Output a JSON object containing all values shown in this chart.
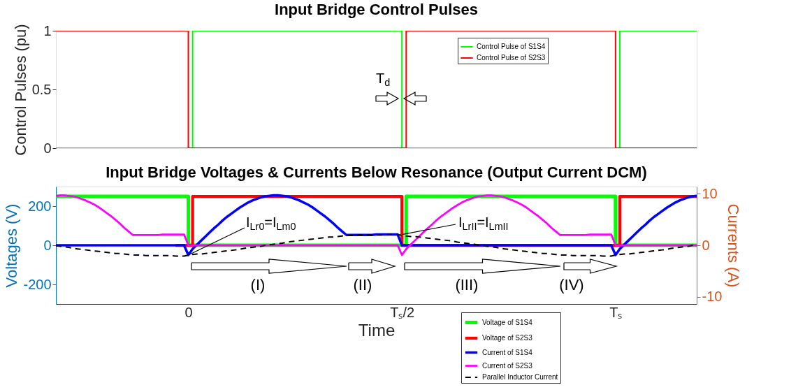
{
  "chart_data": [
    {
      "type": "step",
      "title": "Input Bridge Control Pulses",
      "ylabel": "Control Pulses (pu)",
      "categories": [
        null,
        null,
        null,
        null,
        null,
        null,
        null,
        null,
        null,
        null,
        null,
        null,
        null,
        null,
        null,
        null,
        null,
        null,
        null,
        null,
        null,
        null,
        null,
        null,
        null,
        null,
        null,
        null,
        null,
        null,
        null,
        null,
        null,
        null,
        null,
        null,
        null,
        null,
        null,
        null,
        null,
        null,
        null,
        null,
        null,
        null,
        null,
        null,
        null,
        null,
        null,
        null,
        null,
        null,
        null,
        null,
        null,
        null,
        null,
        null,
        null,
        null,
        null,
        null,
        null,
        null,
        null,
        null,
        null,
        null,
        null,
        null,
        null,
        null,
        null,
        null,
        null,
        null,
        null,
        null,
        null,
        null,
        null,
        null,
        null,
        null,
        null,
        null,
        null,
        null,
        null,
        null,
        null,
        null,
        null,
        null,
        null,
        null,
        null,
        null,
        null,
        null,
        null,
        null,
        null,
        null,
        null,
        null,
        null,
        null,
        null,
        null,
        null,
        null,
        null,
        null,
        null,
        null,
        null,
        null,
        null,
        null,
        null,
        null,
        null,
        null,
        null,
        null,
        null,
        null,
        null,
        null,
        null,
        null,
        null,
        null,
        null,
        null,
        null,
        null,
        null,
        null,
        null,
        null,
        null,
        null,
        null,
        null,
        null,
        null,
        null
      ],
      "ylim": [
        0,
        1
      ],
      "yticks": [
        0,
        0.5,
        1
      ],
      "tick_labels": "y",
      "grid": false,
      "legend": "top right",
      "annotations": [
        "T$_{d}$"
      ],
      "series": [
        {
          "name": "Control Pulse of S1S4",
          "color": "#00ff00",
          "values": [
            0,
            0,
            0,
            0,
            0,
            0,
            0,
            0,
            0,
            0,
            0,
            0,
            0,
            0,
            0,
            0,
            0,
            0,
            0,
            0,
            0,
            0,
            0,
            0,
            0,
            0,
            0,
            0,
            0,
            0,
            0,
            0,
            1,
            1,
            1,
            1,
            1,
            1,
            1,
            1,
            1,
            1,
            1,
            1,
            1,
            1,
            1,
            1,
            1,
            1,
            1,
            1,
            1,
            1,
            1,
            1,
            1,
            1,
            1,
            1,
            1,
            1,
            1,
            1,
            1,
            1,
            1,
            1,
            1,
            1,
            1,
            1,
            1,
            1,
            1,
            1,
            1,
            1,
            1,
            1,
            1,
            0,
            0,
            0,
            0,
            0,
            0,
            0,
            0,
            0,
            0,
            0,
            0,
            0,
            0,
            0,
            0,
            0,
            0,
            0,
            0,
            0,
            0,
            0,
            0,
            0,
            0,
            0,
            0,
            0,
            0,
            0,
            0,
            0,
            0,
            0,
            0,
            0,
            0,
            0,
            0,
            0,
            0,
            0,
            0,
            0,
            0,
            0,
            0,
            0,
            0,
            0,
            1,
            1,
            1,
            1,
            1,
            1,
            1,
            1,
            1,
            1,
            1,
            1,
            1,
            1,
            1,
            1,
            1,
            1,
            1
          ]
        },
        {
          "name": "Control Pulse of S2S3",
          "color": "#ff0000",
          "values": [
            1,
            1,
            1,
            1,
            1,
            1,
            1,
            1,
            1,
            1,
            1,
            1,
            1,
            1,
            1,
            1,
            1,
            1,
            1,
            1,
            1,
            1,
            1,
            1,
            1,
            1,
            1,
            1,
            1,
            1,
            1,
            0,
            0,
            0,
            0,
            0,
            0,
            0,
            0,
            0,
            0,
            0,
            0,
            0,
            0,
            0,
            0,
            0,
            0,
            0,
            0,
            0,
            0,
            0,
            0,
            0,
            0,
            0,
            0,
            0,
            0,
            0,
            0,
            0,
            0,
            0,
            0,
            0,
            0,
            0,
            0,
            0,
            0,
            0,
            0,
            0,
            0,
            0,
            0,
            0,
            0,
            0,
            1,
            1,
            1,
            1,
            1,
            1,
            1,
            1,
            1,
            1,
            1,
            1,
            1,
            1,
            1,
            1,
            1,
            1,
            1,
            1,
            1,
            1,
            1,
            1,
            1,
            1,
            1,
            1,
            1,
            1,
            1,
            1,
            1,
            1,
            1,
            1,
            1,
            1,
            1,
            1,
            1,
            1,
            1,
            1,
            1,
            1,
            1,
            1,
            1,
            0,
            0,
            0,
            0,
            0,
            0,
            0,
            0,
            0,
            0,
            0,
            0,
            0,
            0,
            0,
            0,
            0,
            0,
            0,
            0
          ]
        }
      ]
    },
    {
      "type": "line",
      "title": "Input Bridge Voltages & Currents Below Resonance (Output Current DCM)",
      "xlabel": "Time",
      "ylabel": "Voltages (V)",
      "y2label": "Currents (A)",
      "categories": [
        null,
        null,
        null,
        null,
        null,
        null,
        null,
        null,
        null,
        null,
        null,
        null,
        null,
        null,
        null,
        null,
        null,
        null,
        null,
        null,
        null,
        null,
        null,
        null,
        null,
        null,
        null,
        null,
        null,
        null,
        null,
        "0",
        null,
        null,
        null,
        null,
        null,
        null,
        null,
        null,
        null,
        null,
        null,
        null,
        null,
        null,
        null,
        null,
        null,
        null,
        null,
        null,
        null,
        null,
        null,
        null,
        null,
        null,
        null,
        null,
        null,
        null,
        null,
        null,
        null,
        null,
        null,
        null,
        null,
        null,
        null,
        null,
        null,
        null,
        null,
        null,
        null,
        null,
        null,
        null,
        null,
        "Tₛ/2",
        null,
        null,
        null,
        null,
        null,
        null,
        null,
        null,
        null,
        null,
        null,
        null,
        null,
        null,
        null,
        null,
        null,
        null,
        null,
        null,
        null,
        null,
        null,
        null,
        null,
        null,
        null,
        null,
        null,
        null,
        null,
        null,
        null,
        null,
        null,
        null,
        null,
        null,
        null,
        null,
        null,
        null,
        null,
        null,
        null,
        null,
        null,
        null,
        null,
        "Tₛ",
        null,
        null,
        null,
        null,
        null,
        null,
        null,
        null,
        null,
        null,
        null,
        null,
        null,
        null,
        null,
        null,
        null,
        null,
        null
      ],
      "ylim": [
        -300,
        300
      ],
      "yticks": [
        -200,
        0,
        200
      ],
      "y2lim": [
        -11.4,
        11.4
      ],
      "y2ticks": [
        -10,
        0,
        10
      ],
      "grid": false,
      "legend": "bottom",
      "annotations": [
        {
          "text": "I$_{Lr0}$=I$_{Lm0}$",
          "x": "0",
          "y": -50
        },
        {
          "text": "I$_{LrII}$=I$_{LmII}$",
          "x": "Tₛ/2",
          "y": 55
        },
        "(I)",
        "(II)",
        "(III)",
        "(IV)"
      ],
      "series": [
        {
          "name": "Voltage of S1S4",
          "color": "#00ff00",
          "type": "step",
          "values": [
            250,
            250,
            250,
            250,
            250,
            250,
            250,
            250,
            250,
            250,
            250,
            250,
            250,
            250,
            250,
            250,
            250,
            250,
            250,
            250,
            250,
            250,
            250,
            250,
            250,
            250,
            250,
            250,
            250,
            250,
            250,
            0,
            0,
            0,
            0,
            0,
            0,
            0,
            0,
            0,
            0,
            0,
            0,
            0,
            0,
            0,
            0,
            0,
            0,
            0,
            0,
            0,
            0,
            0,
            0,
            0,
            0,
            0,
            0,
            0,
            0,
            0,
            0,
            0,
            0,
            0,
            0,
            0,
            0,
            0,
            0,
            0,
            0,
            0,
            0,
            0,
            0,
            0,
            0,
            0,
            0,
            0,
            250,
            250,
            250,
            250,
            250,
            250,
            250,
            250,
            250,
            250,
            250,
            250,
            250,
            250,
            250,
            250,
            250,
            250,
            250,
            250,
            250,
            250,
            250,
            250,
            250,
            250,
            250,
            250,
            250,
            250,
            250,
            250,
            250,
            250,
            250,
            250,
            250,
            250,
            250,
            250,
            250,
            250,
            250,
            250,
            250,
            250,
            250,
            250,
            250,
            0,
            0,
            0,
            0,
            0,
            0,
            0,
            0,
            0,
            0,
            0,
            0,
            0,
            0,
            0,
            0,
            0,
            0,
            0,
            0
          ]
        },
        {
          "name": "Voltage of S2S3",
          "color": "#ff0000",
          "type": "step",
          "values": [
            null,
            null,
            null,
            null,
            null,
            null,
            null,
            null,
            null,
            null,
            null,
            null,
            null,
            null,
            null,
            null,
            null,
            null,
            null,
            null,
            null,
            null,
            null,
            null,
            null,
            null,
            null,
            null,
            0,
            0,
            0,
            0,
            250,
            250,
            250,
            250,
            250,
            250,
            250,
            250,
            250,
            250,
            250,
            250,
            250,
            250,
            250,
            250,
            250,
            250,
            250,
            250,
            250,
            250,
            250,
            250,
            250,
            250,
            250,
            250,
            250,
            250,
            250,
            250,
            250,
            250,
            250,
            250,
            250,
            250,
            250,
            250,
            250,
            250,
            250,
            250,
            250,
            250,
            250,
            250,
            250,
            0,
            0,
            0,
            0,
            0,
            0,
            0,
            0,
            0,
            0,
            0,
            0,
            0,
            0,
            0,
            0,
            0,
            0,
            0,
            0,
            0,
            0,
            0,
            0,
            0,
            0,
            0,
            0,
            0,
            0,
            0,
            0,
            0,
            0,
            0,
            0,
            0,
            0,
            0,
            0,
            0,
            0,
            0,
            0,
            0,
            0,
            0,
            0,
            0,
            0,
            0,
            250,
            250,
            250,
            250,
            250,
            250,
            250,
            250,
            250,
            250,
            250,
            250,
            250,
            250,
            250,
            250,
            250,
            250,
            250
          ]
        },
        {
          "name": "Current of S1S4",
          "color": "#0000ff",
          "axis": "y2",
          "values": [
            0,
            0,
            0,
            0,
            0,
            0,
            0,
            0,
            0,
            0,
            0,
            0,
            0,
            0,
            0,
            0,
            0,
            0,
            0,
            0,
            0,
            0,
            0,
            0,
            0,
            0,
            0,
            0,
            0,
            0,
            0,
            -1.9,
            -0.7,
            0.1,
            0.9,
            1.7,
            2.5,
            3.3,
            4.0,
            4.8,
            5.5,
            6.1,
            6.7,
            7.3,
            7.8,
            8.3,
            8.7,
            9.0,
            9.3,
            9.5,
            9.6,
            9.7,
            9.7,
            9.6,
            9.5,
            9.3,
            9.0,
            8.7,
            8.3,
            7.9,
            7.4,
            6.8,
            6.2,
            5.6,
            4.9,
            4.2,
            3.4,
            2.7,
            2.0,
            2.0,
            2.0,
            2.0,
            2.0,
            2.0,
            2.0,
            2.1,
            2.1,
            2.1,
            2.1,
            2.1,
            2.1,
            0,
            0,
            0,
            0,
            0,
            0,
            0,
            0,
            0,
            0,
            0,
            0,
            0,
            0,
            0,
            0,
            0,
            0,
            0,
            0,
            0,
            0,
            0,
            0,
            0,
            0,
            0,
            0,
            0,
            0,
            0,
            0,
            0,
            0,
            0,
            0,
            0,
            0,
            0,
            0,
            0,
            0,
            0,
            0,
            0,
            0,
            0,
            0,
            0,
            0,
            -1.9,
            -0.7,
            0.1,
            0.9,
            1.7,
            2.5,
            3.3,
            4.0,
            4.8,
            5.5,
            6.1,
            6.7,
            7.3,
            7.8,
            8.3,
            8.7,
            9.0,
            9.3,
            9.5,
            9.6
          ]
        },
        {
          "name": "Current of S2S3",
          "color": "#ff00ff",
          "axis": "y2",
          "values": [
            9.6,
            9.7,
            9.7,
            9.6,
            9.5,
            9.3,
            9.0,
            8.7,
            8.3,
            7.9,
            7.4,
            6.8,
            6.2,
            5.6,
            4.9,
            4.2,
            3.4,
            2.7,
            2.0,
            2.0,
            2.0,
            2.0,
            2.0,
            2.0,
            2.0,
            2.1,
            2.1,
            2.1,
            2.1,
            2.1,
            2.1,
            0,
            0,
            0,
            0,
            0,
            0,
            0,
            0,
            0,
            0,
            0,
            0,
            0,
            0,
            0,
            0,
            0,
            0,
            0,
            0,
            0,
            0,
            0,
            0,
            0,
            0,
            0,
            0,
            0,
            0,
            0,
            0,
            0,
            0,
            0,
            0,
            0,
            0,
            0,
            0,
            0,
            0,
            0,
            0,
            0,
            0,
            0,
            0,
            0,
            0,
            -1.9,
            -0.7,
            0.1,
            0.9,
            1.7,
            2.5,
            3.3,
            4.0,
            4.8,
            5.5,
            6.1,
            6.7,
            7.3,
            7.8,
            8.3,
            8.7,
            9.0,
            9.3,
            9.5,
            9.6,
            9.7,
            9.7,
            9.6,
            9.5,
            9.3,
            9.0,
            8.7,
            8.3,
            7.9,
            7.4,
            6.8,
            6.2,
            5.6,
            4.9,
            4.2,
            3.4,
            2.7,
            2.0,
            2.0,
            2.0,
            2.0,
            2.0,
            2.0,
            2.0,
            2.1,
            2.1,
            2.1,
            2.1,
            2.1,
            2.1,
            0,
            0,
            0,
            0,
            0,
            0,
            0,
            0,
            0,
            0,
            0,
            0,
            0,
            0,
            0,
            0,
            0,
            0,
            0,
            0
          ]
        },
        {
          "name": "Parallel Inductor Current",
          "color": "#000000",
          "axis": "y2",
          "line_style": "dashed",
          "values": [
            -0.1,
            -0.2,
            -0.3,
            -0.4,
            -0.6,
            -0.7,
            -0.8,
            -0.9,
            -1.0,
            -1.1,
            -1.2,
            -1.3,
            -1.4,
            -1.5,
            -1.6,
            -1.6,
            -1.7,
            -1.8,
            -1.9,
            -1.9,
            -1.9,
            -2.0,
            -2.0,
            -2.0,
            -2.0,
            -2.0,
            -2.0,
            -2.0,
            -2.1,
            -2.1,
            -2.1,
            -1.9,
            -1.8,
            -1.7,
            -1.7,
            -1.6,
            -1.5,
            -1.4,
            -1.3,
            -1.2,
            -1.1,
            -1.0,
            -0.9,
            -0.8,
            -0.6,
            -0.5,
            -0.4,
            -0.3,
            -0.2,
            0.0,
            0.1,
            0.2,
            0.3,
            0.4,
            0.6,
            0.7,
            0.8,
            0.9,
            1.0,
            1.1,
            1.2,
            1.3,
            1.4,
            1.5,
            1.6,
            1.6,
            1.7,
            1.8,
            1.9,
            1.9,
            1.9,
            2.0,
            2.0,
            2.0,
            2.0,
            2.0,
            2.0,
            2.0,
            2.1,
            2.1,
            2.1,
            1.9,
            1.8,
            1.7,
            1.7,
            1.6,
            1.5,
            1.4,
            1.3,
            1.2,
            1.1,
            1.0,
            0.9,
            0.8,
            0.6,
            0.5,
            0.4,
            0.3,
            0.2,
            0.0,
            -0.1,
            -0.2,
            -0.3,
            -0.4,
            -0.6,
            -0.7,
            -0.8,
            -0.9,
            -1.0,
            -1.1,
            -1.2,
            -1.3,
            -1.4,
            -1.5,
            -1.6,
            -1.6,
            -1.7,
            -1.8,
            -1.9,
            -1.9,
            -1.9,
            -2.0,
            -2.0,
            -2.0,
            -2.0,
            -2.0,
            -2.0,
            -2.0,
            -2.1,
            -2.1,
            -2.1,
            -1.9,
            -1.8,
            -1.7,
            -1.7,
            -1.6,
            -1.5,
            -1.4,
            -1.3,
            -1.2,
            -1.1,
            -1.0,
            -0.9,
            -0.8,
            -0.6,
            -0.5,
            -0.4,
            -0.3,
            -0.2,
            0.0,
            0.1
          ]
        }
      ]
    }
  ]
}
